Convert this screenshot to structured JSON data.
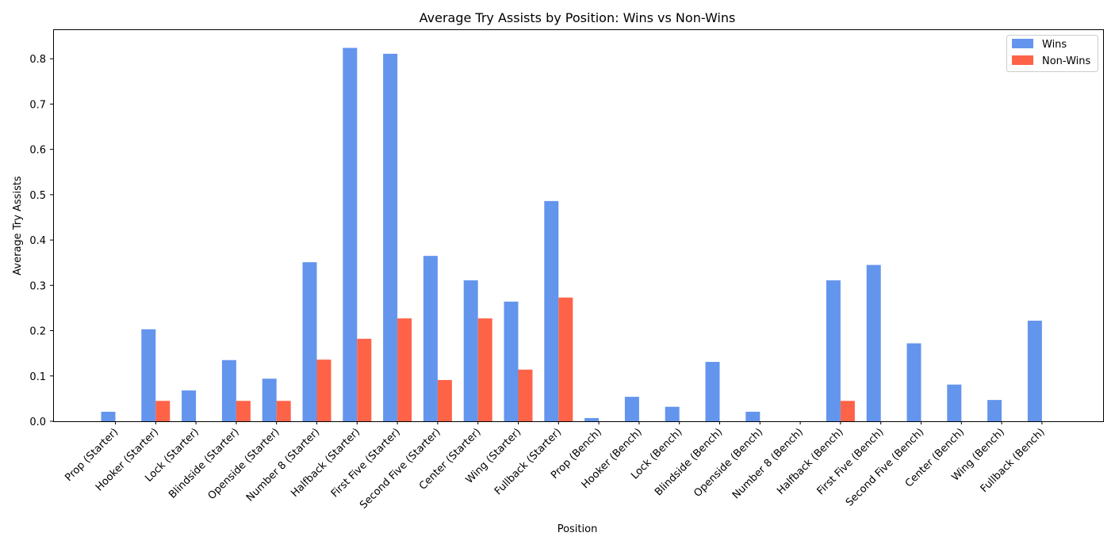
{
  "chart_data": {
    "type": "bar",
    "title": "Average Try Assists by Position: Wins vs Non-Wins",
    "xlabel": "Position",
    "ylabel": "Average Try Assists",
    "ylim": [
      0,
      0.865
    ],
    "yticks": [
      "0.0",
      "0.1",
      "0.2",
      "0.3",
      "0.4",
      "0.5",
      "0.6",
      "0.7",
      "0.8"
    ],
    "grid": false,
    "legend_position": "top-right",
    "categories": [
      "Prop (Starter)",
      "Hooker (Starter)",
      "Lock (Starter)",
      "Blindside (Starter)",
      "Openside (Starter)",
      "Number 8 (Starter)",
      "Halfback (Starter)",
      "First Five (Starter)",
      "Second Five (Starter)",
      "Center (Starter)",
      "Wing (Starter)",
      "Fullback (Starter)",
      "Prop (Bench)",
      "Hooker (Bench)",
      "Lock (Bench)",
      "Blindside (Bench)",
      "Openside (Bench)",
      "Number 8 (Bench)",
      "Halfback (Bench)",
      "First Five (Bench)",
      "Second Five (Bench)",
      "Center (Bench)",
      "Wing (Bench)",
      "Fullback (Bench)"
    ],
    "series": [
      {
        "name": "Wins",
        "color": "#6495ED",
        "values": [
          0.021,
          0.203,
          0.068,
          0.135,
          0.094,
          0.351,
          0.824,
          0.811,
          0.365,
          0.311,
          0.264,
          0.486,
          0.007,
          0.054,
          0.032,
          0.131,
          0.021,
          0.0,
          0.311,
          0.345,
          0.172,
          0.081,
          0.047,
          0.222
        ]
      },
      {
        "name": "Non-Wins",
        "color": "#FF6347",
        "values": [
          0.0,
          0.045,
          0.0,
          0.045,
          0.045,
          0.136,
          0.182,
          0.227,
          0.091,
          0.227,
          0.114,
          0.273,
          0.0,
          0.0,
          0.0,
          0.0,
          0.0,
          0.0,
          0.045,
          0.0,
          0.0,
          0.0,
          0.0,
          0.0
        ]
      }
    ]
  }
}
